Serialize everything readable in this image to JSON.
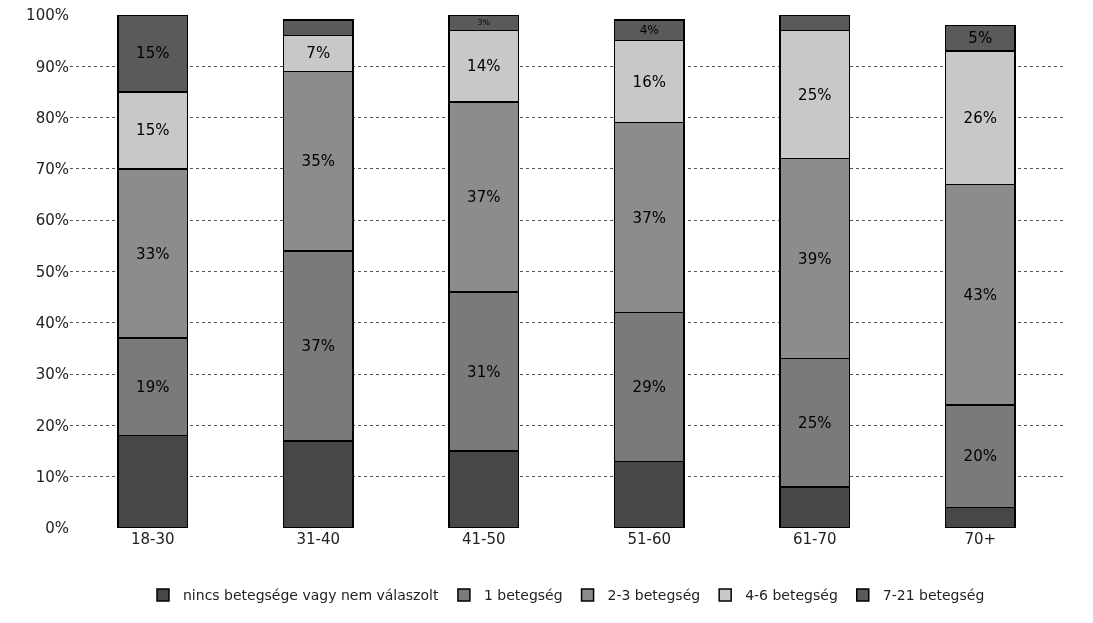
{
  "chart_data": {
    "type": "bar",
    "stacked": true,
    "categories": [
      "18-30",
      "31-40",
      "41-50",
      "51-60",
      "61-70",
      "70+"
    ],
    "series": [
      {
        "name": "nincs betegsége vagy nem válaszolt",
        "color": "#474747",
        "values": [
          18,
          17,
          15,
          13,
          8,
          4
        ],
        "value_labels": [
          null,
          null,
          null,
          null,
          null,
          null
        ]
      },
      {
        "name": "1 betegség",
        "color": "#7a7a7a",
        "values": [
          19,
          37,
          31,
          29,
          25,
          20
        ],
        "value_labels": [
          "19%",
          "37%",
          "31%",
          "29%",
          "25%",
          "20%"
        ]
      },
      {
        "name": "2-3 betegség",
        "color": "#8c8c8c",
        "values": [
          33,
          35,
          37,
          37,
          39,
          43
        ],
        "value_labels": [
          "33%",
          "35%",
          "37%",
          "37%",
          "39%",
          "43%"
        ]
      },
      {
        "name": "4-6 betegség",
        "color": "#c8c8c8",
        "values": [
          15,
          7,
          14,
          16,
          25,
          26
        ],
        "value_labels": [
          "15%",
          "7%",
          "14%",
          "16%",
          "25%",
          "26%"
        ]
      },
      {
        "name": "7-21 betegség",
        "color": "#5a5a5a",
        "values": [
          15,
          3,
          3,
          4,
          3,
          5
        ],
        "value_labels": [
          "15%",
          null,
          "3%",
          "4%",
          null,
          "5%"
        ]
      }
    ],
    "ylim": [
      0,
      100
    ],
    "yticks": [
      {
        "value": 0,
        "label": "0%"
      },
      {
        "value": 10,
        "label": "10%"
      },
      {
        "value": 20,
        "label": "20%"
      },
      {
        "value": 30,
        "label": "30%"
      },
      {
        "value": 40,
        "label": "40%"
      },
      {
        "value": 50,
        "label": "50%"
      },
      {
        "value": 60,
        "label": "60%"
      },
      {
        "value": 70,
        "label": "70%"
      },
      {
        "value": 80,
        "label": "80%"
      },
      {
        "value": 90,
        "label": "90%"
      },
      {
        "value": 100,
        "label": "100%"
      }
    ],
    "grid": "y",
    "legend": "bottom"
  }
}
